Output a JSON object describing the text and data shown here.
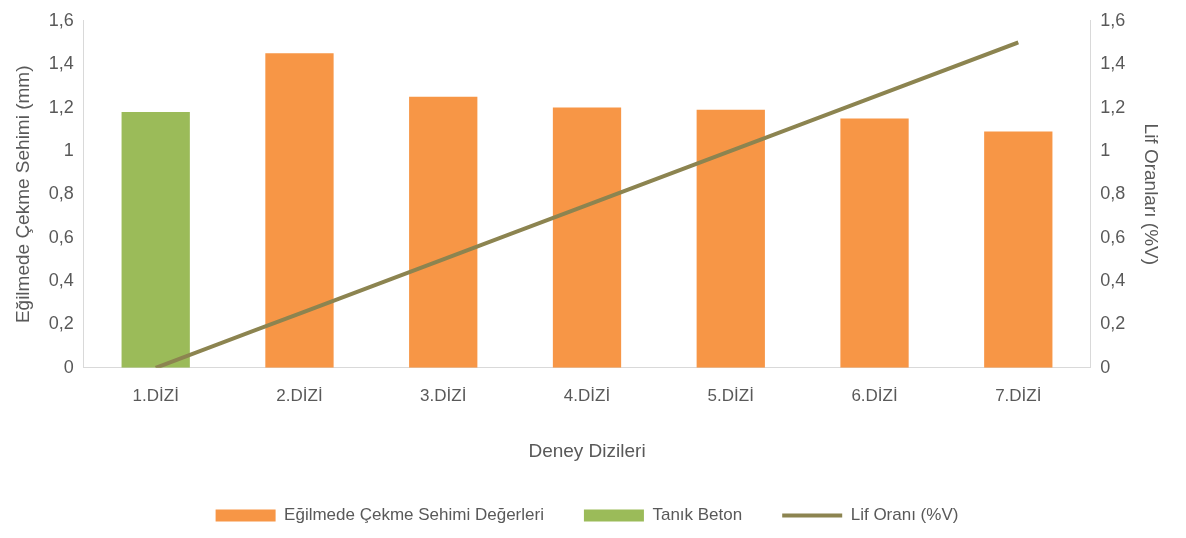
{
  "chart_data": {
    "type": "bar",
    "xlabel": "Deney Dizileri",
    "ylabel": "Eğilmede Çekme Sehimi (mm)",
    "y2label": "Lif Oranları (%V)",
    "categories": [
      "1.DİZİ",
      "2.DİZİ",
      "3.DİZİ",
      "4.DİZİ",
      "5.DİZİ",
      "6.DİZİ",
      "7.DİZİ"
    ],
    "series": [
      {
        "name": "Eğilmede Çekme Sehimi Değerleri",
        "color": "#f79646",
        "values": [
          null,
          1.45,
          1.25,
          1.2,
          1.19,
          1.15,
          1.09
        ]
      },
      {
        "name": "Tanık Beton",
        "color": "#9bbb59",
        "values": [
          1.18,
          null,
          null,
          null,
          null,
          null,
          null
        ]
      },
      {
        "name": "Lif Oranı (%V)",
        "type": "line",
        "axis": "y2",
        "color": "#8c8450",
        "values": [
          0,
          0.25,
          0.5,
          0.75,
          1.0,
          1.25,
          1.5
        ]
      }
    ],
    "ylim": [
      0,
      1.6
    ],
    "yticks": [
      0,
      {
        "value": 0.2,
        "label": "0,2"
      },
      {
        "value": 0.4,
        "label": "0,4"
      },
      {
        "value": 0.6,
        "label": "0,6"
      },
      {
        "value": 0.8,
        "label": "0,8"
      },
      1,
      {
        "value": 1.2,
        "label": "1,2"
      },
      {
        "value": 1.4,
        "label": "1,4"
      },
      {
        "value": 1.6,
        "label": "1,6"
      }
    ],
    "y2lim": [
      0,
      1.6
    ],
    "y2ticks": [
      0,
      {
        "value": 0.2,
        "label": "0,2"
      },
      {
        "value": 0.4,
        "label": "0,4"
      },
      {
        "value": 0.6,
        "label": "0,6"
      },
      {
        "value": 0.8,
        "label": "0,8"
      },
      1,
      {
        "value": 1.2,
        "label": "1,2"
      },
      {
        "value": 1.4,
        "label": "1,4"
      },
      {
        "value": 1.6,
        "label": "1,6"
      }
    ],
    "grid": false,
    "legend": "bottom",
    "marker": "none",
    "line_style": "solid"
  }
}
